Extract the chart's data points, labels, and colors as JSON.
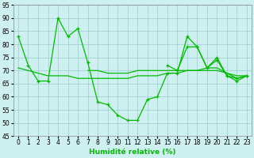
{
  "x": [
    0,
    1,
    2,
    3,
    4,
    5,
    6,
    7,
    8,
    9,
    10,
    11,
    12,
    13,
    14,
    15,
    16,
    17,
    18,
    19,
    20,
    21,
    22,
    23
  ],
  "line_spiky": [
    83,
    72,
    66,
    66,
    90,
    83,
    86,
    73,
    58,
    57,
    53,
    51,
    51,
    59,
    60,
    69,
    69,
    83,
    79,
    71,
    75,
    68,
    66,
    68
  ],
  "line_smooth": [
    71,
    70,
    69,
    68,
    68,
    68,
    67,
    67,
    67,
    67,
    67,
    67,
    68,
    68,
    68,
    69,
    69,
    70,
    70,
    70,
    70,
    69,
    68,
    68
  ],
  "line_flat": [
    null,
    null,
    null,
    null,
    null,
    null,
    null,
    70,
    70,
    69,
    69,
    69,
    70,
    70,
    70,
    70,
    70,
    70,
    70,
    71,
    71,
    69,
    67,
    68
  ],
  "line_rise": [
    null,
    null,
    null,
    null,
    null,
    null,
    null,
    null,
    null,
    null,
    null,
    null,
    null,
    null,
    null,
    72,
    70,
    79,
    79,
    71,
    74,
    68,
    67,
    68
  ],
  "background_color": "#cff0f0",
  "grid_color": "#99cccc",
  "line_color": "#00bb00",
  "xlabel": "Humidité relative (%)",
  "ylim": [
    45,
    95
  ],
  "xlim": [
    0,
    23
  ],
  "yticks": [
    45,
    50,
    55,
    60,
    65,
    70,
    75,
    80,
    85,
    90,
    95
  ],
  "xticks": [
    0,
    1,
    2,
    3,
    4,
    5,
    6,
    7,
    8,
    9,
    10,
    11,
    12,
    13,
    14,
    15,
    16,
    17,
    18,
    19,
    20,
    21,
    22,
    23
  ],
  "xlabel_fontsize": 6.5,
  "tick_fontsize": 5.5
}
